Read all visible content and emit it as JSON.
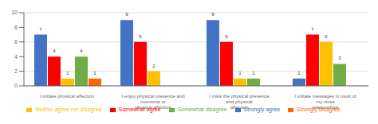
{
  "chart_data": {
    "type": "bar",
    "categories": [
      "I initiate physical affection",
      "I enjoy physical presence and moments or\nphysical affection",
      "I miss the physical presence and physical\naffection",
      "I initiate messages in most of my close\nrelationships"
    ],
    "series": [
      {
        "name": "Strongly agree",
        "color": "#4472C4",
        "values": [
          7,
          9,
          9,
          1
        ]
      },
      {
        "name": "Somewhat agree",
        "color": "#FF0000",
        "values": [
          4,
          6,
          6,
          7
        ]
      },
      {
        "name": "Neither agree nor disagree",
        "color": "#FFC000",
        "values": [
          1,
          2,
          1,
          6
        ]
      },
      {
        "name": "Somewhat disagree",
        "color": "#70AD47",
        "values": [
          4,
          0,
          1,
          3
        ]
      },
      {
        "name": "Strongly disagree",
        "color": "#FF6600",
        "values": [
          1,
          0,
          0,
          0
        ]
      }
    ],
    "ylim": [
      0,
      10
    ],
    "yticks": [
      0,
      2,
      4,
      6,
      8,
      10
    ],
    "grid": true,
    "data_labels": true,
    "legend": "bottom"
  }
}
